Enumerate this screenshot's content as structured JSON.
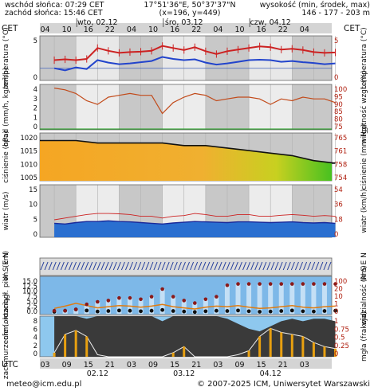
{
  "header": {
    "sunrise": "wschód słońca: 07:29 CET",
    "sunset": "zachód słońca: 15:46 CET",
    "coords": "17°51'36\"E, 50°37'37\"N",
    "grid": "(x=196, y=449)",
    "elevation_title": "wysokość (min, środek, max)",
    "elevation_values": "146 - 177 - 203 m"
  },
  "timeline": {
    "tz_left": "CET",
    "tz_right": "CET",
    "tz_bottom": "UTC",
    "top_hours": [
      "04",
      "10",
      "16",
      "22",
      "04",
      "10",
      "16",
      "22",
      "04",
      "10",
      "16",
      "22",
      "04"
    ],
    "bottom_hours": [
      "03",
      "09",
      "15",
      "21",
      "03",
      "09",
      "15",
      "21",
      "03",
      "09",
      "15",
      "21",
      "03"
    ],
    "top_days": [
      "wto, 02.12",
      "śro, 03.12",
      "czw, 04.12"
    ],
    "bottom_days": [
      "02.12",
      "03.12",
      "04.12"
    ]
  },
  "panels": {
    "temp": {
      "left_label": "temperatura (°C)",
      "right_label": "temperatura (°C)",
      "left_ticks": [
        "5",
        "0"
      ],
      "right_ticks": [
        "5",
        "0"
      ]
    },
    "precip": {
      "left_label": "opad (mm/h, kg/m²/h)",
      "right_label": "wilgotność wzgl. (%)",
      "left_ticks": [
        "4",
        "3",
        "2",
        "1",
        "0"
      ],
      "right_ticks": [
        "100",
        "95",
        "90",
        "85",
        "80",
        "75"
      ]
    },
    "pressure": {
      "left_label": "ciśnienie (hPa)",
      "right_label": "ciśnienie (mm Hg)",
      "left_ticks": [
        "1020",
        "1015",
        "1010",
        "1005"
      ],
      "right_ticks": [
        "765",
        "761",
        "758",
        "754"
      ]
    },
    "wind": {
      "left_label": "wiatr (m/s)",
      "right_label": "wiatr (km/h)",
      "left_ticks": [
        "15",
        "10",
        "5",
        "0"
      ],
      "right_ticks": [
        "54",
        "36",
        "18",
        "0"
      ]
    },
    "dir": {
      "left_label": "W S E N",
      "right_label": "W S E N"
    },
    "cloud": {
      "left_label": "chm. rozciągł. pion. (km)",
      "right_label": "widzialność (km)",
      "left_ticks": [
        "15.0",
        "12.5",
        "10.0",
        "7.5",
        "5.0",
        "2.5",
        "0.0"
      ],
      "right_ticks": [
        "100",
        "20",
        "10",
        "1",
        "0"
      ]
    },
    "cover": {
      "left_label": "zachmurzenie (oktanty)",
      "right_label": "mgła (frakcja)",
      "left_ticks": [
        "8",
        "6",
        "4",
        "2",
        "0"
      ],
      "right_ticks": [
        "1",
        "0.75",
        "0.5",
        "0.25",
        "0"
      ]
    }
  },
  "footer": {
    "email": "meteo@icm.edu.pl",
    "copyright": "© 2007-2025 ICM, Uniwersytet Warszawski"
  },
  "colors": {
    "night": "#c8c8c8",
    "day": "#ffffff",
    "panel_bg": "#dcdcdc",
    "temp": "#cc2222",
    "dew": "#2244cc",
    "pressure_fill": "#f0a020",
    "wind": "#1a2a9a",
    "cloud_sky": "#7db8e8",
    "frame": "#666666"
  },
  "chart_data": [
    {
      "type": "line",
      "title": "temperatura",
      "x": [
        0,
        3,
        6,
        9,
        12,
        15,
        18,
        21,
        24,
        27,
        30,
        33,
        36,
        39,
        42,
        45,
        48,
        51,
        54,
        57,
        60,
        63,
        66,
        69,
        72,
        75,
        78
      ],
      "series": [
        {
          "values": [
            2.0,
            2.2,
            2.0,
            2.3,
            5.0,
            4.3,
            3.8,
            4.0,
            4.1,
            4.3,
            5.5,
            5.0,
            4.5,
            5.2,
            4.2,
            3.5,
            4.2,
            4.6,
            5.0,
            5.4,
            5.2,
            4.6,
            4.8,
            4.5,
            4.0,
            3.8,
            3.9
          ]
        },
        {
          "values": [
            0.0,
            -0.5,
            0.2,
            -0.2,
            2.0,
            1.4,
            1.0,
            1.2,
            1.5,
            1.8,
            2.8,
            2.3,
            2.0,
            2.2,
            1.4,
            0.9,
            1.2,
            1.6,
            2.0,
            2.1,
            2.0,
            1.6,
            1.8,
            1.5,
            1.3,
            1.0,
            1.2
          ]
        }
      ],
      "ylim": [
        -3,
        8
      ]
    },
    {
      "type": "line",
      "title": "opad / wilgotność",
      "x": [
        0,
        3,
        6,
        9,
        12,
        15,
        18,
        21,
        24,
        27,
        30,
        33,
        36,
        39,
        42,
        45,
        48,
        51,
        54,
        57,
        60,
        63,
        66,
        69,
        72,
        75,
        78
      ],
      "series": [
        {
          "values": [
            98,
            97,
            95,
            91,
            89,
            93,
            94,
            95,
            94,
            94,
            84,
            90,
            93,
            95,
            94,
            91,
            92,
            93,
            93,
            92,
            89,
            92,
            91,
            93,
            92,
            92,
            90
          ]
        }
      ],
      "ylim": [
        75,
        100
      ]
    },
    {
      "type": "area",
      "title": "ciśnienie",
      "x": [
        0,
        6,
        12,
        18,
        24,
        30,
        36,
        42,
        48,
        54,
        60,
        66,
        72,
        78
      ],
      "series": [
        {
          "values": [
            1019,
            1019,
            1018,
            1018,
            1018,
            1018,
            1017,
            1017,
            1016,
            1015,
            1014,
            1013,
            1011,
            1010
          ]
        }
      ],
      "ylim": [
        1003,
        1022
      ]
    },
    {
      "type": "line",
      "title": "wiatr",
      "x": [
        0,
        3,
        6,
        9,
        12,
        15,
        18,
        21,
        24,
        27,
        30,
        33,
        36,
        39,
        42,
        45,
        48,
        51,
        54,
        57,
        60,
        63,
        66,
        69,
        72,
        75,
        78
      ],
      "series": [
        {
          "values": [
            5.0,
            5.5,
            6.0,
            6.5,
            6.8,
            6.8,
            6.7,
            6.5,
            6.0,
            6.0,
            5.5,
            6.0,
            6.2,
            6.8,
            6.5,
            6.0,
            6.0,
            6.5,
            6.5,
            6.0,
            6.0,
            6.3,
            6.5,
            6.3,
            6.0,
            6.2,
            6.0
          ]
        },
        {
          "values": [
            4.0,
            3.8,
            4.2,
            4.5,
            4.5,
            4.7,
            4.5,
            4.4,
            4.2,
            4.0,
            3.8,
            4.1,
            4.3,
            4.5,
            4.4,
            4.3,
            4.2,
            4.4,
            4.4,
            4.3,
            4.2,
            4.3,
            4.4,
            4.2,
            4.1,
            4.2,
            4.0
          ]
        }
      ],
      "ylim": [
        0,
        15
      ]
    },
    {
      "type": "scatter",
      "title": "chmury / widzialność",
      "x": [
        0,
        3,
        6,
        9,
        12,
        15,
        18,
        21,
        24,
        27,
        30,
        33,
        36,
        39,
        42,
        45,
        48,
        51,
        54,
        57,
        60,
        63,
        66,
        69,
        72,
        75,
        78
      ],
      "series": [
        {
          "values": [
            1.1,
            1.5,
            2.0,
            1.6,
            1.2,
            1.4,
            1.6,
            1.5,
            1.3,
            1.5,
            1.8,
            1.4,
            1.2,
            1.0,
            1.3,
            1.5,
            1.4,
            1.6,
            1.3,
            1.1,
            1.2,
            1.4,
            1.6,
            1.3,
            1.2,
            1.4,
            1.5
          ]
        },
        {
          "values": [
            1.5,
            1.5,
            2.0,
            4.0,
            5.0,
            5.5,
            6.5,
            6.5,
            6.0,
            7.0,
            10.0,
            7.0,
            5.5,
            4.5,
            6.0,
            7.0,
            11.5,
            12.0,
            12.0,
            12.0,
            12.0,
            12.0,
            12.0,
            12.0,
            12.0,
            12.0,
            12.0
          ]
        }
      ],
      "ylim": [
        0,
        15
      ]
    },
    {
      "type": "area",
      "title": "zachmurzenie",
      "x": [
        0,
        3,
        6,
        9,
        12,
        15,
        18,
        21,
        24,
        27,
        30,
        33,
        36,
        39,
        42,
        45,
        48,
        51,
        54,
        57,
        60,
        63,
        66,
        69,
        72,
        75,
        78
      ],
      "series": [
        {
          "values": [
            8,
            8,
            8,
            7.5,
            8,
            8,
            8,
            8,
            8,
            8,
            7.0,
            8,
            8,
            8,
            8,
            8,
            7.5,
            6.5,
            5.5,
            5.0,
            6.0,
            7.0,
            7.5,
            7.0,
            7.5,
            7.5,
            7.0
          ]
        },
        {
          "values": [
            0.1,
            0.55,
            0.65,
            0.5,
            0.05,
            0.0,
            0.0,
            0.0,
            0.0,
            0.0,
            0.0,
            0.1,
            0.25,
            0.0,
            0.0,
            0.0,
            0.0,
            0.05,
            0.15,
            0.5,
            0.7,
            0.6,
            0.55,
            0.5,
            0.35,
            0.25,
            0.2
          ]
        }
      ],
      "ylim": [
        0,
        8
      ]
    }
  ]
}
